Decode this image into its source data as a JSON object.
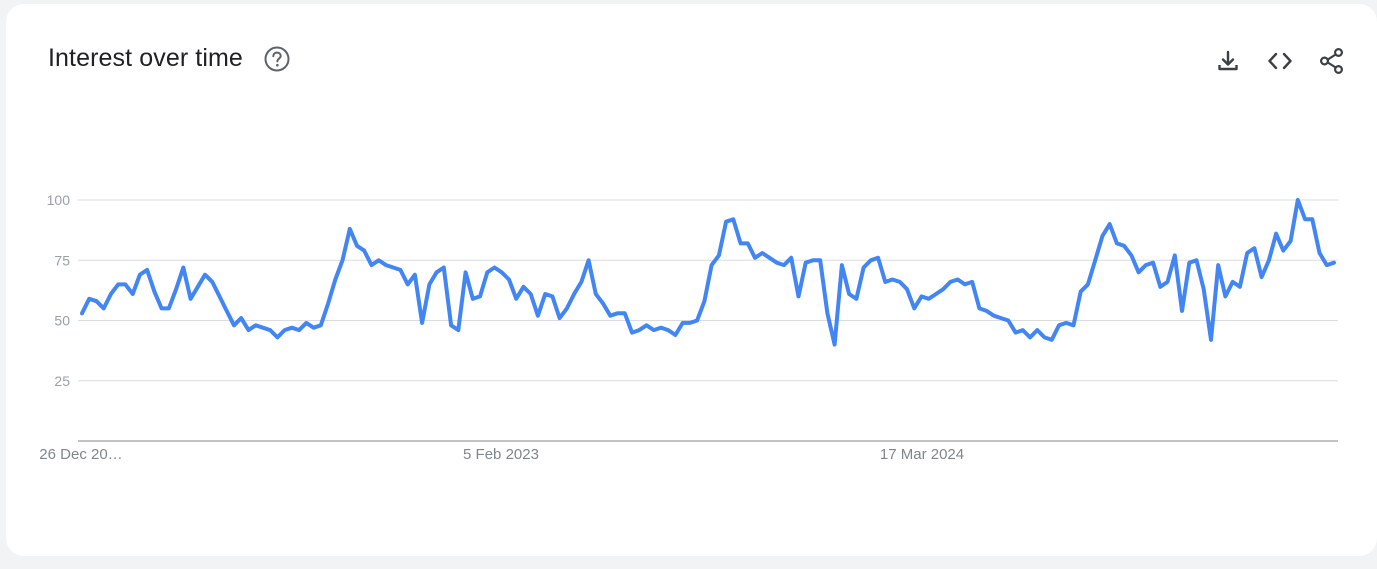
{
  "header": {
    "title": "Interest over time",
    "help_icon": "help-circle-icon"
  },
  "actions": [
    {
      "name": "download-button",
      "icon": "download-icon"
    },
    {
      "name": "embed-button",
      "icon": "code-icon"
    },
    {
      "name": "share-button",
      "icon": "share-icon"
    }
  ],
  "colors": {
    "line": "#4285f4",
    "grid": "#dadce0",
    "axis": "#9aa0a6"
  },
  "chart_data": {
    "type": "line",
    "title": "",
    "xlabel": "",
    "ylabel": "",
    "ylim": [
      0,
      100
    ],
    "yticks": [
      "100",
      "75",
      "50",
      "25"
    ],
    "x_tick_labels": [
      "26 Dec 20…",
      "5 Feb 2023",
      "17 Mar 2024"
    ],
    "x_start": "2021-12-26",
    "x_interval_weeks": 1,
    "series": [
      {
        "values": [
          53,
          59,
          58,
          55,
          61,
          65,
          65,
          61,
          69,
          71,
          62,
          55,
          55,
          63,
          72,
          59,
          64,
          69,
          66,
          60,
          54,
          48,
          51,
          46,
          48,
          47,
          46,
          43,
          46,
          47,
          46,
          49,
          47,
          48,
          57,
          67,
          75,
          88,
          81,
          79,
          73,
          75,
          73,
          72,
          71,
          65,
          69,
          49,
          65,
          70,
          72,
          48,
          46,
          70,
          59,
          60,
          70,
          72,
          70,
          67,
          59,
          64,
          61,
          52,
          61,
          60,
          51,
          55,
          61,
          66,
          75,
          61,
          57,
          52,
          53,
          53,
          45,
          46,
          48,
          46,
          47,
          46,
          44,
          49,
          49,
          50,
          58,
          73,
          77,
          91,
          92,
          82,
          82,
          76,
          78,
          76,
          74,
          73,
          76,
          60,
          74,
          75,
          75,
          53,
          40,
          73,
          61,
          59,
          72,
          75,
          76,
          66,
          67,
          66,
          63,
          55,
          60,
          59,
          61,
          63,
          66,
          67,
          65,
          66,
          55,
          54,
          52,
          51,
          50,
          45,
          46,
          43,
          46,
          43,
          42,
          48,
          49,
          48,
          62,
          65,
          75,
          85,
          90,
          82,
          81,
          77,
          70,
          73,
          74,
          64,
          66,
          77,
          54,
          74,
          75,
          63,
          42,
          73,
          60,
          66,
          64,
          78,
          80,
          68,
          75,
          86,
          79,
          83,
          100,
          92,
          92,
          78,
          73,
          74
        ]
      }
    ]
  }
}
